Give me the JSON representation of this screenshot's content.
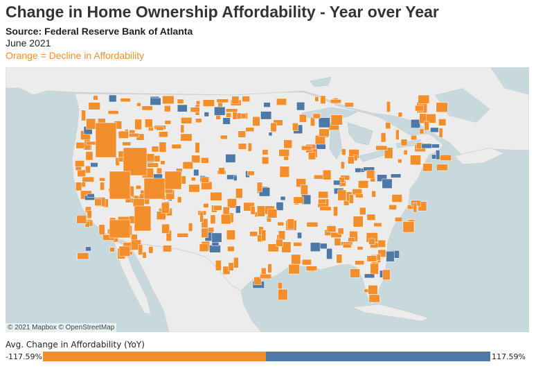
{
  "title": "Change in Home Ownership Affordability - Year over Year",
  "source": "Source: Federal Reserve Bank of Atlanta",
  "date": "June 2021",
  "note": "Orange = Decline in Affordability",
  "map": {
    "attribution": "© 2021 Mapbox © OpenStreetMap",
    "colors": {
      "water": "#c8d9dd",
      "land": "#ececec",
      "decline": "#f28e2b",
      "improve": "#4e79a7"
    }
  },
  "legend": {
    "title": "Avg. Change in Affordability (YoY)",
    "min_label": "-117.59%",
    "max_label": "117.59%",
    "min_value": -117.59,
    "max_value": 117.59
  }
}
